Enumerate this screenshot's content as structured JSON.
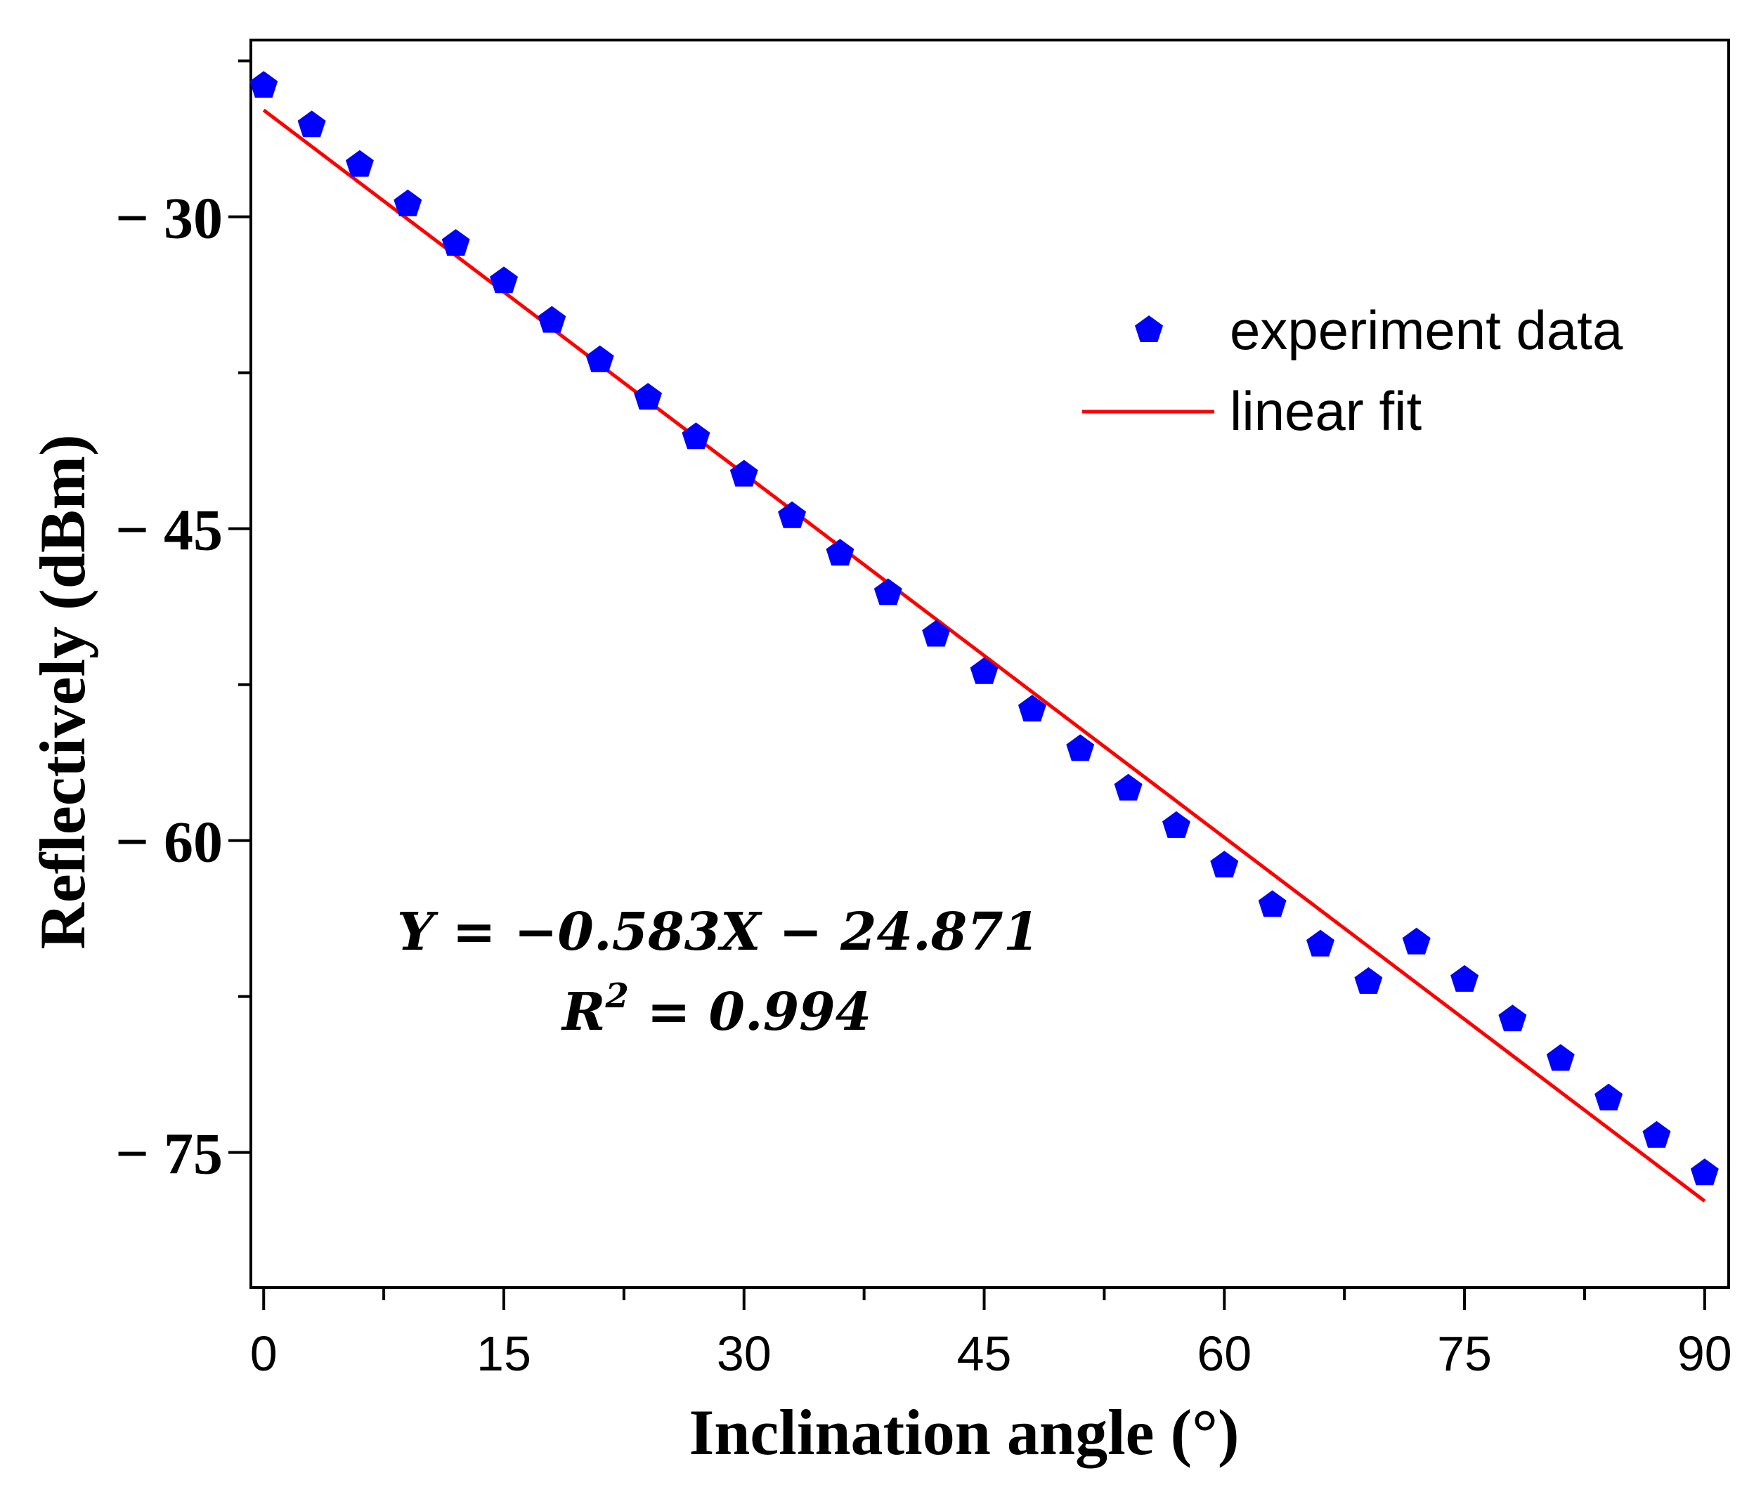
{
  "chart_data": {
    "type": "scatter",
    "xlabel": "Inclination angle (°)",
    "ylabel": "Reflectively (dBm)",
    "xlim": [
      -0.8,
      91.5
    ],
    "ylim": [
      -81.5,
      -21.5
    ],
    "xticks": [
      0,
      15,
      30,
      45,
      60,
      75,
      90
    ],
    "xtick_labels": [
      "0",
      "15",
      "30",
      "45",
      "60",
      "75",
      "90"
    ],
    "x_minor_ticks": [
      7.5,
      22.5,
      37.5,
      52.5,
      67.5,
      82.5
    ],
    "yticks": [
      -30,
      -45,
      -60,
      -75
    ],
    "ytick_labels": [
      "− 30",
      "− 45",
      "− 60",
      "− 75"
    ],
    "y_minor_ticks": [
      -22.5,
      -37.5,
      -52.5,
      -67.5,
      -82.5
    ],
    "series": [
      {
        "name": "experiment data",
        "marker": "pentagon",
        "color": "#0000ff",
        "x": [
          0,
          3,
          6,
          9,
          12,
          15,
          18,
          21,
          24,
          27,
          30,
          33,
          36,
          39,
          42,
          45,
          48,
          51,
          54,
          57,
          60,
          63,
          66,
          69,
          72,
          75,
          78,
          81,
          84,
          87,
          90
        ],
        "y": [
          -23.7,
          -25.6,
          -27.5,
          -29.4,
          -31.3,
          -33.1,
          -35.0,
          -36.9,
          -38.7,
          -40.6,
          -42.4,
          -44.4,
          -46.2,
          -48.1,
          -50.1,
          -51.9,
          -53.7,
          -55.6,
          -57.5,
          -59.3,
          -61.2,
          -63.1,
          -65.0,
          -66.8,
          -64.9,
          -66.7,
          -68.6,
          -70.5,
          -72.4,
          -74.2,
          -76.0
        ]
      },
      {
        "name": "linear fit",
        "style": "line",
        "color": "#ff0000",
        "x": [
          0,
          90
        ],
        "y": [
          -24.871,
          -77.341
        ]
      }
    ],
    "legend": {
      "position": "top-right",
      "labels": [
        "experiment data",
        "linear fit"
      ]
    },
    "annotation": {
      "equation": "Y = −0.583X − 24.871",
      "r_squared": "0.994"
    },
    "grid": false
  }
}
